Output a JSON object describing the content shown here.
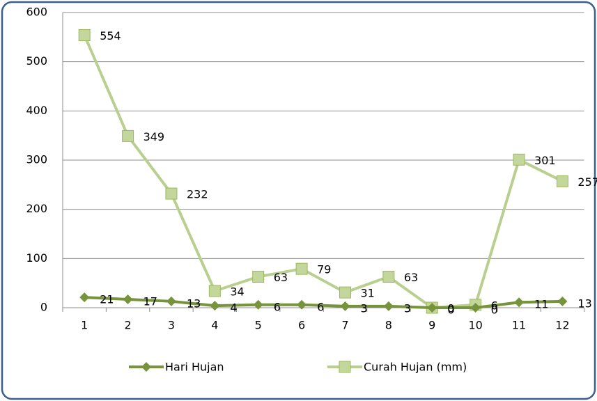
{
  "chart_data": {
    "type": "line",
    "categories": [
      "1",
      "2",
      "3",
      "4",
      "5",
      "6",
      "7",
      "8",
      "9",
      "10",
      "11",
      "12"
    ],
    "series": [
      {
        "name": "Hari Hujan",
        "color": "#77933c",
        "marker": "diamond",
        "values": [
          21,
          17,
          13,
          4,
          6,
          6,
          3,
          3,
          0,
          0,
          11,
          13
        ]
      },
      {
        "name": "Curah Hujan (mm)",
        "color": "#b9cf8f",
        "marker": "square",
        "values": [
          554,
          349,
          232,
          34,
          63,
          79,
          31,
          63,
          0,
          6,
          301,
          257
        ]
      }
    ],
    "ylim": [
      0,
      600
    ],
    "yticks": [
      0,
      100,
      200,
      300,
      400,
      500,
      600
    ],
    "grid": true,
    "legend": "bottom"
  }
}
